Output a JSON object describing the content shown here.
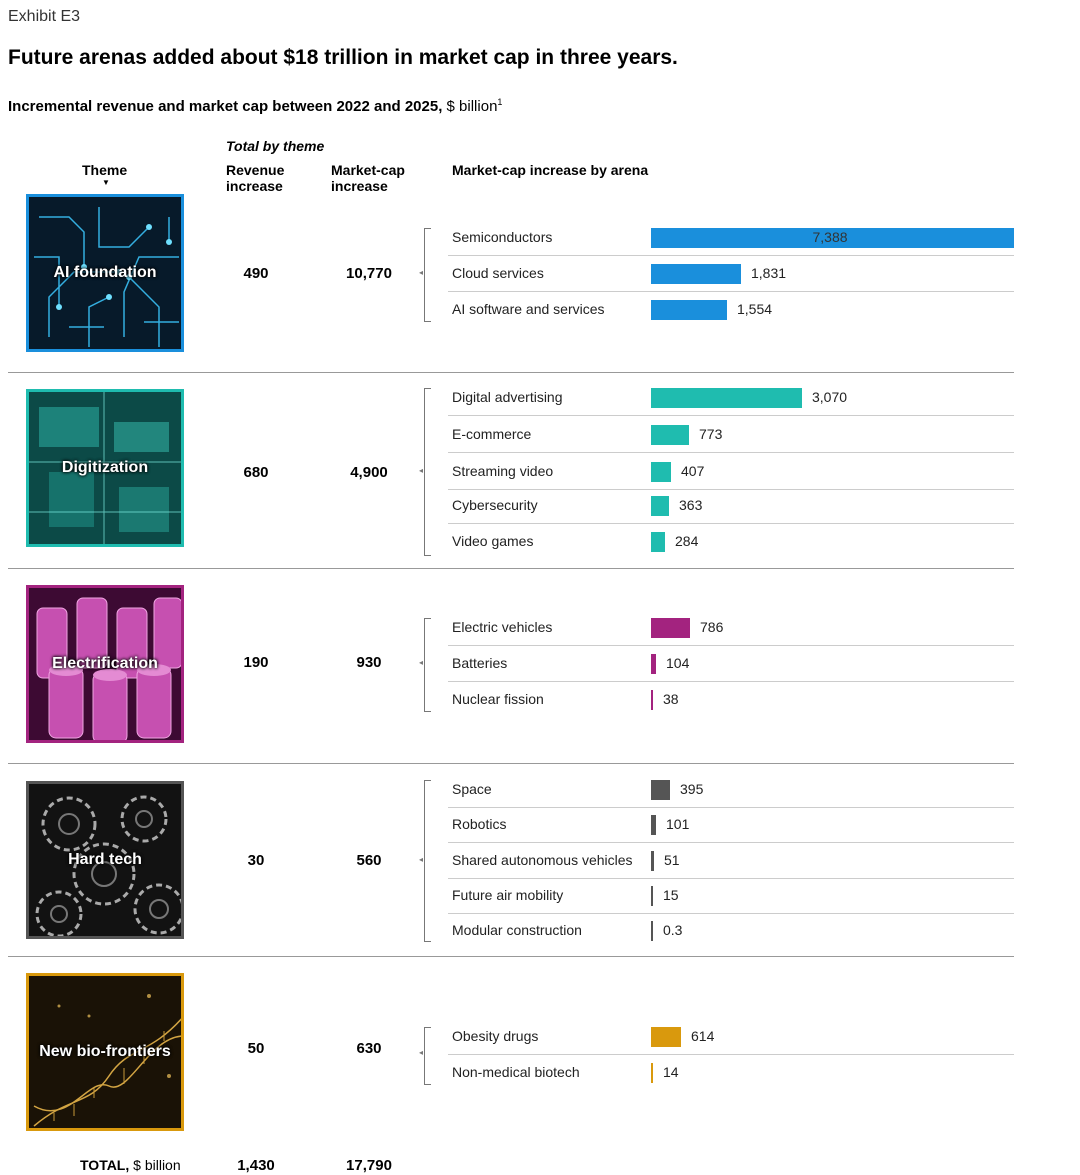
{
  "exhibit": "Exhibit E3",
  "title": "Future arenas added about $18 trillion in market cap in three years.",
  "subtitle_bold": "Incremental revenue and market cap between 2022 and 2025,",
  "subtitle_unit": " $ billion",
  "subtitle_footnote": "1",
  "headers": {
    "theme": "Theme",
    "total_by_theme": "Total by theme",
    "revenue": "Revenue increase",
    "marketcap": "Market-cap increase",
    "by_arena": "Market-cap increase by arena"
  },
  "total": {
    "label_bold": "TOTAL,",
    "label_unit": " $ billion",
    "revenue": "1,430",
    "marketcap": "17,790"
  },
  "colors": {
    "ai": "#1a8fdc",
    "digitization": "#1fbcaf",
    "electrification": "#a3237f",
    "hardtech": "#555555",
    "bio": "#d9990d"
  },
  "chart_data": {
    "type": "bar",
    "max": 7388,
    "themes": [
      {
        "name": "AI foundation",
        "revenue": "490",
        "marketcap": "10,770",
        "arenas": [
          {
            "label": "Semiconductors",
            "value": 7388,
            "display": "7,388"
          },
          {
            "label": "Cloud services",
            "value": 1831,
            "display": "1,831"
          },
          {
            "label": "AI software and services",
            "value": 1554,
            "display": "1,554"
          }
        ]
      },
      {
        "name": "Digitization",
        "revenue": "680",
        "marketcap": "4,900",
        "arenas": [
          {
            "label": "Digital advertising",
            "value": 3070,
            "display": "3,070"
          },
          {
            "label": "E-commerce",
            "value": 773,
            "display": "773"
          },
          {
            "label": "Streaming video",
            "value": 407,
            "display": "407"
          },
          {
            "label": "Cybersecurity",
            "value": 363,
            "display": "363"
          },
          {
            "label": "Video games",
            "value": 284,
            "display": "284"
          }
        ]
      },
      {
        "name": "Electrification",
        "revenue": "190",
        "marketcap": "930",
        "arenas": [
          {
            "label": "Electric vehicles",
            "value": 786,
            "display": "786"
          },
          {
            "label": "Batteries",
            "value": 104,
            "display": "104"
          },
          {
            "label": "Nuclear fission",
            "value": 38,
            "display": "38"
          }
        ]
      },
      {
        "name": "Hard tech",
        "revenue": "30",
        "marketcap": "560",
        "arenas": [
          {
            "label": "Space",
            "value": 395,
            "display": "395"
          },
          {
            "label": "Robotics",
            "value": 101,
            "display": "101"
          },
          {
            "label": "Shared autonomous vehicles",
            "value": 51,
            "display": "51"
          },
          {
            "label": "Future air mobility",
            "value": 15,
            "display": "15"
          },
          {
            "label": "Modular construction",
            "value": 0.3,
            "display": "0.3"
          }
        ]
      },
      {
        "name": "New bio-frontiers",
        "revenue": "50",
        "marketcap": "630",
        "arenas": [
          {
            "label": "Obesity drugs",
            "value": 614,
            "display": "614"
          },
          {
            "label": "Non-medical biotech",
            "value": 14,
            "display": "14"
          }
        ]
      }
    ]
  }
}
